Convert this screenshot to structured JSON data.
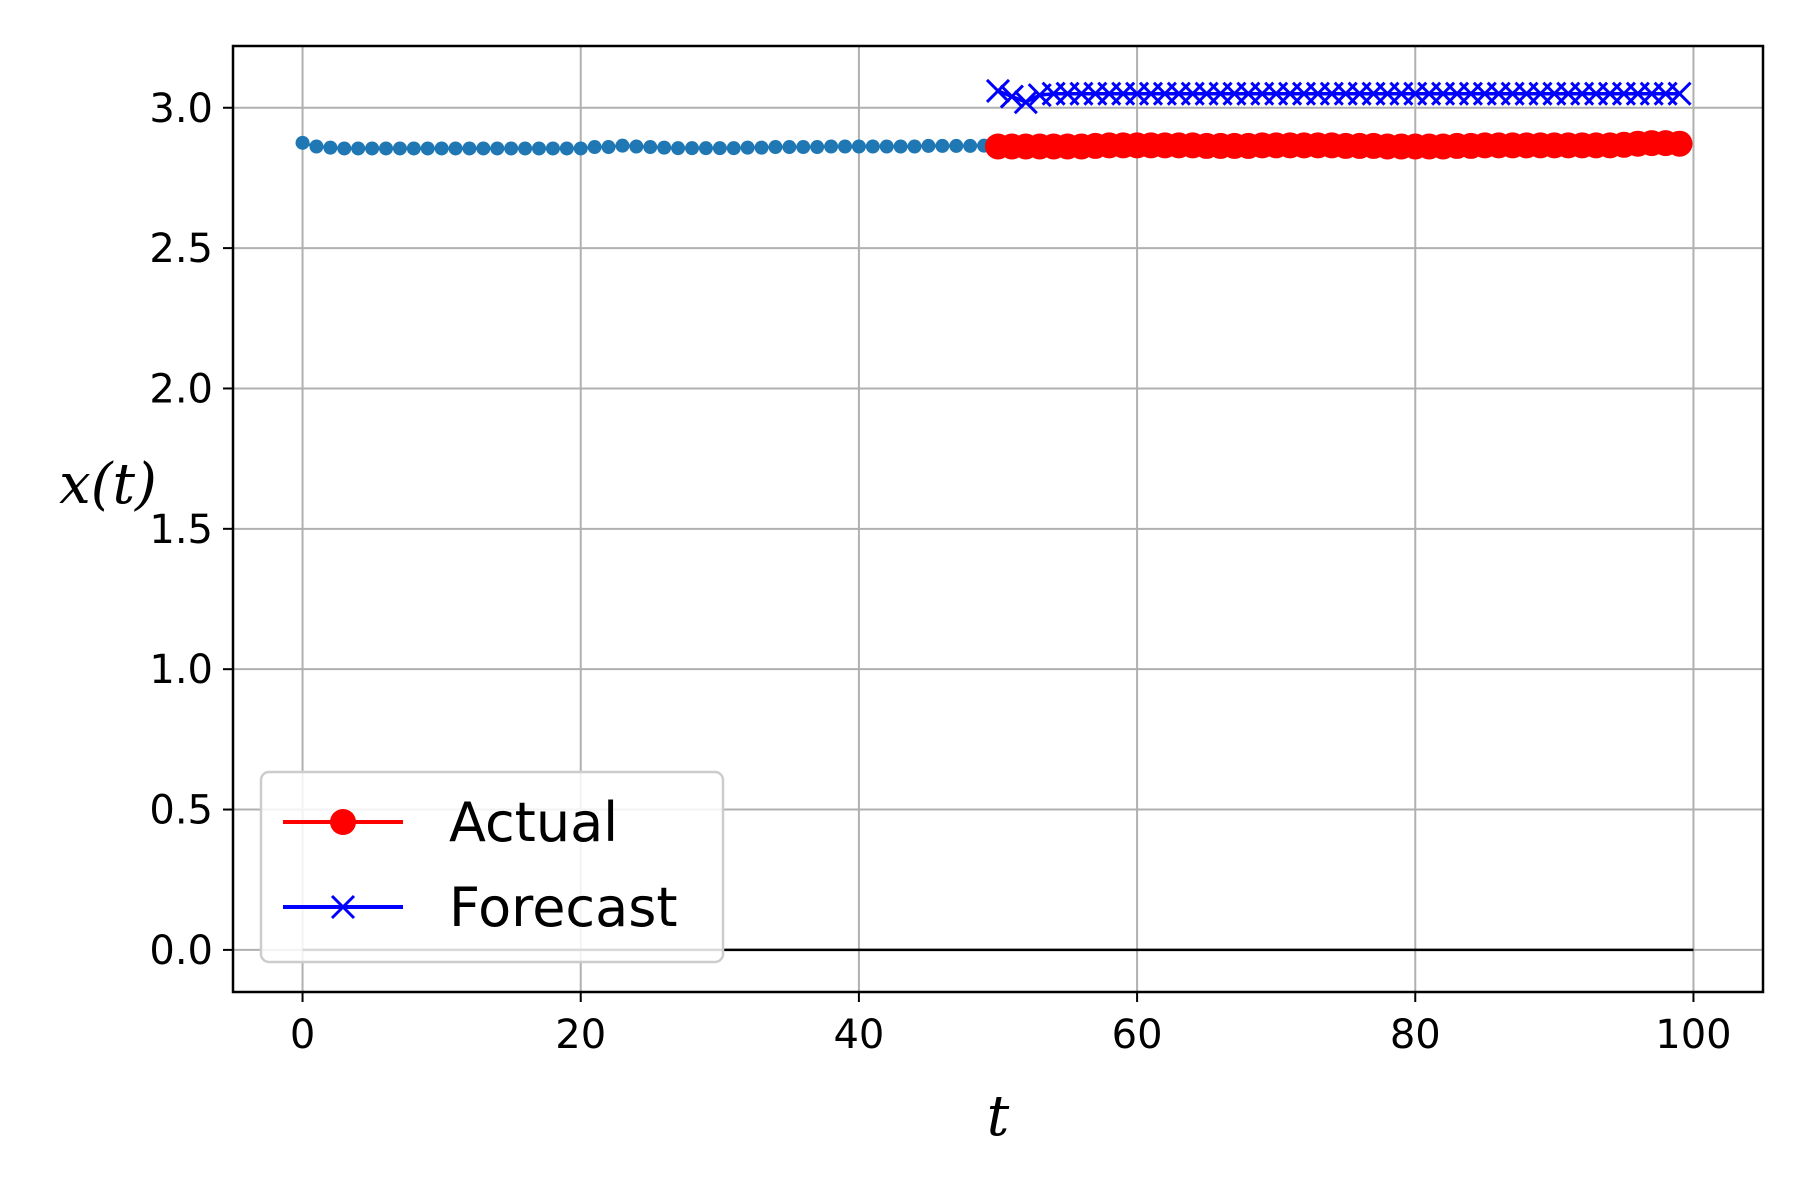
{
  "chart_data": {
    "type": "line",
    "xlabel": "t",
    "ylabel": "x(t)",
    "xlim": [
      -5,
      105
    ],
    "ylim": [
      -0.15,
      3.22
    ],
    "grid": true,
    "legend_position": "bottom-left",
    "x_ticks": [
      0,
      20,
      40,
      60,
      80,
      100
    ],
    "x_tick_labels": [
      "0",
      "20",
      "40",
      "60",
      "80",
      "100"
    ],
    "y_ticks": [
      0.0,
      0.5,
      1.0,
      1.5,
      2.0,
      2.5,
      3.0
    ],
    "y_tick_labels": [
      "0.0",
      "0.5",
      "1.0",
      "1.5",
      "2.0",
      "2.5",
      "3.0"
    ],
    "series": [
      {
        "name": "",
        "color": "#1f77b4",
        "marker": "small-dot",
        "x_start": 0,
        "x_step": 1,
        "values": [
          2.875,
          2.862,
          2.858,
          2.855,
          2.855,
          2.855,
          2.855,
          2.855,
          2.855,
          2.855,
          2.855,
          2.855,
          2.855,
          2.855,
          2.855,
          2.855,
          2.855,
          2.855,
          2.855,
          2.855,
          2.855,
          2.86,
          2.86,
          2.865,
          2.862,
          2.86,
          2.858,
          2.856,
          2.856,
          2.856,
          2.856,
          2.856,
          2.858,
          2.858,
          2.86,
          2.86,
          2.86,
          2.86,
          2.862,
          2.862,
          2.862,
          2.862,
          2.862,
          2.862,
          2.862,
          2.864,
          2.864,
          2.864,
          2.864,
          2.865,
          2.865
        ]
      },
      {
        "name": "Actual",
        "color": "#ff0000",
        "marker": "o",
        "x_start": 50,
        "x_step": 1,
        "values": [
          2.862,
          2.862,
          2.862,
          2.862,
          2.862,
          2.862,
          2.862,
          2.864,
          2.866,
          2.866,
          2.866,
          2.866,
          2.866,
          2.866,
          2.866,
          2.864,
          2.864,
          2.864,
          2.864,
          2.866,
          2.866,
          2.866,
          2.866,
          2.866,
          2.866,
          2.864,
          2.864,
          2.864,
          2.862,
          2.862,
          2.862,
          2.862,
          2.862,
          2.864,
          2.864,
          2.866,
          2.866,
          2.866,
          2.866,
          2.866,
          2.866,
          2.866,
          2.866,
          2.866,
          2.866,
          2.868,
          2.872,
          2.874,
          2.874,
          2.872
        ]
      },
      {
        "name": "Forecast",
        "color": "#0000ff",
        "marker": "x",
        "x_start": 50,
        "x_step": 1,
        "values": [
          3.06,
          3.04,
          3.02,
          3.045,
          3.05,
          3.05,
          3.05,
          3.05,
          3.05,
          3.05,
          3.05,
          3.05,
          3.05,
          3.05,
          3.05,
          3.05,
          3.05,
          3.05,
          3.05,
          3.05,
          3.05,
          3.05,
          3.05,
          3.05,
          3.05,
          3.05,
          3.05,
          3.05,
          3.05,
          3.05,
          3.05,
          3.05,
          3.05,
          3.05,
          3.05,
          3.05,
          3.05,
          3.05,
          3.05,
          3.05,
          3.05,
          3.05,
          3.05,
          3.05,
          3.05,
          3.05,
          3.05,
          3.05,
          3.05,
          3.05
        ]
      },
      {
        "name": "",
        "color": "#000000",
        "marker": "none",
        "x": [
          0,
          100
        ],
        "values": [
          0,
          0
        ]
      }
    ]
  }
}
